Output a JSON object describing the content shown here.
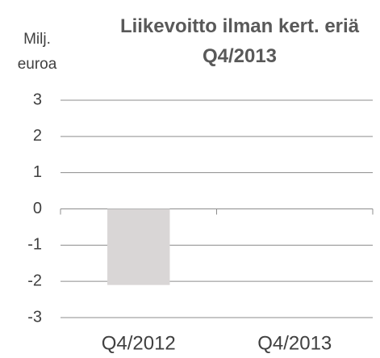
{
  "chart_data": {
    "type": "bar",
    "title": "Liikevoitto ilman kert. eriä Q4/2013",
    "y_label": "Milj. euroa",
    "categories": [
      "Q4/2012",
      "Q4/2013"
    ],
    "values": [
      -2.1,
      0
    ],
    "color": "#d9d6d6",
    "ylim": [
      -3,
      3
    ],
    "yticks": [
      -3,
      -2,
      -1,
      0,
      1,
      2,
      3
    ],
    "grid": true
  }
}
